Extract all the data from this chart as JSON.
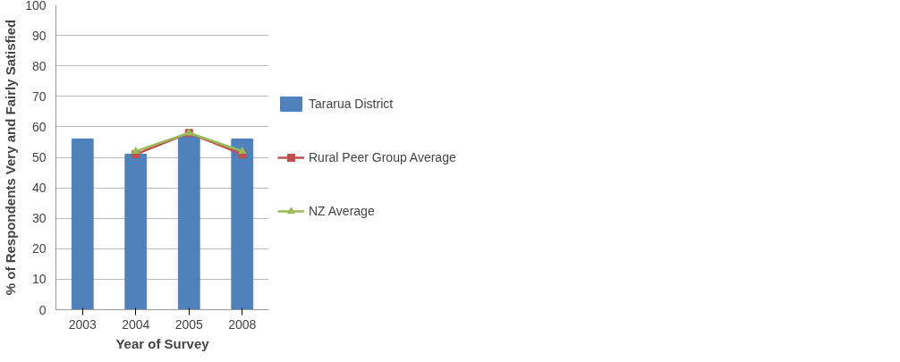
{
  "chart_data": {
    "type": "bar",
    "xlabel": "Year of Survey",
    "ylabel": "% of Respondents Very and Fairly Satisfied",
    "categories": [
      "2003",
      "2004",
      "2005",
      "2008"
    ],
    "series": [
      {
        "name": "Tararua District",
        "color": "#4f81bd",
        "values": [
          56,
          51,
          57,
          56
        ]
      },
      {
        "name": "Rural Peer Group Average",
        "type": "line",
        "marker": "square",
        "color": "#c0504d",
        "values": [
          null,
          51,
          58,
          51
        ]
      },
      {
        "name": "NZ Average",
        "type": "line",
        "marker": "triangle",
        "color": "#9bbb59",
        "values": [
          null,
          52,
          58,
          52
        ]
      }
    ],
    "ylim": [
      0,
      100
    ],
    "yticks": [
      0,
      10,
      20,
      30,
      40,
      50,
      60,
      70,
      80,
      90,
      100
    ],
    "grid": "y",
    "legend": "right"
  }
}
